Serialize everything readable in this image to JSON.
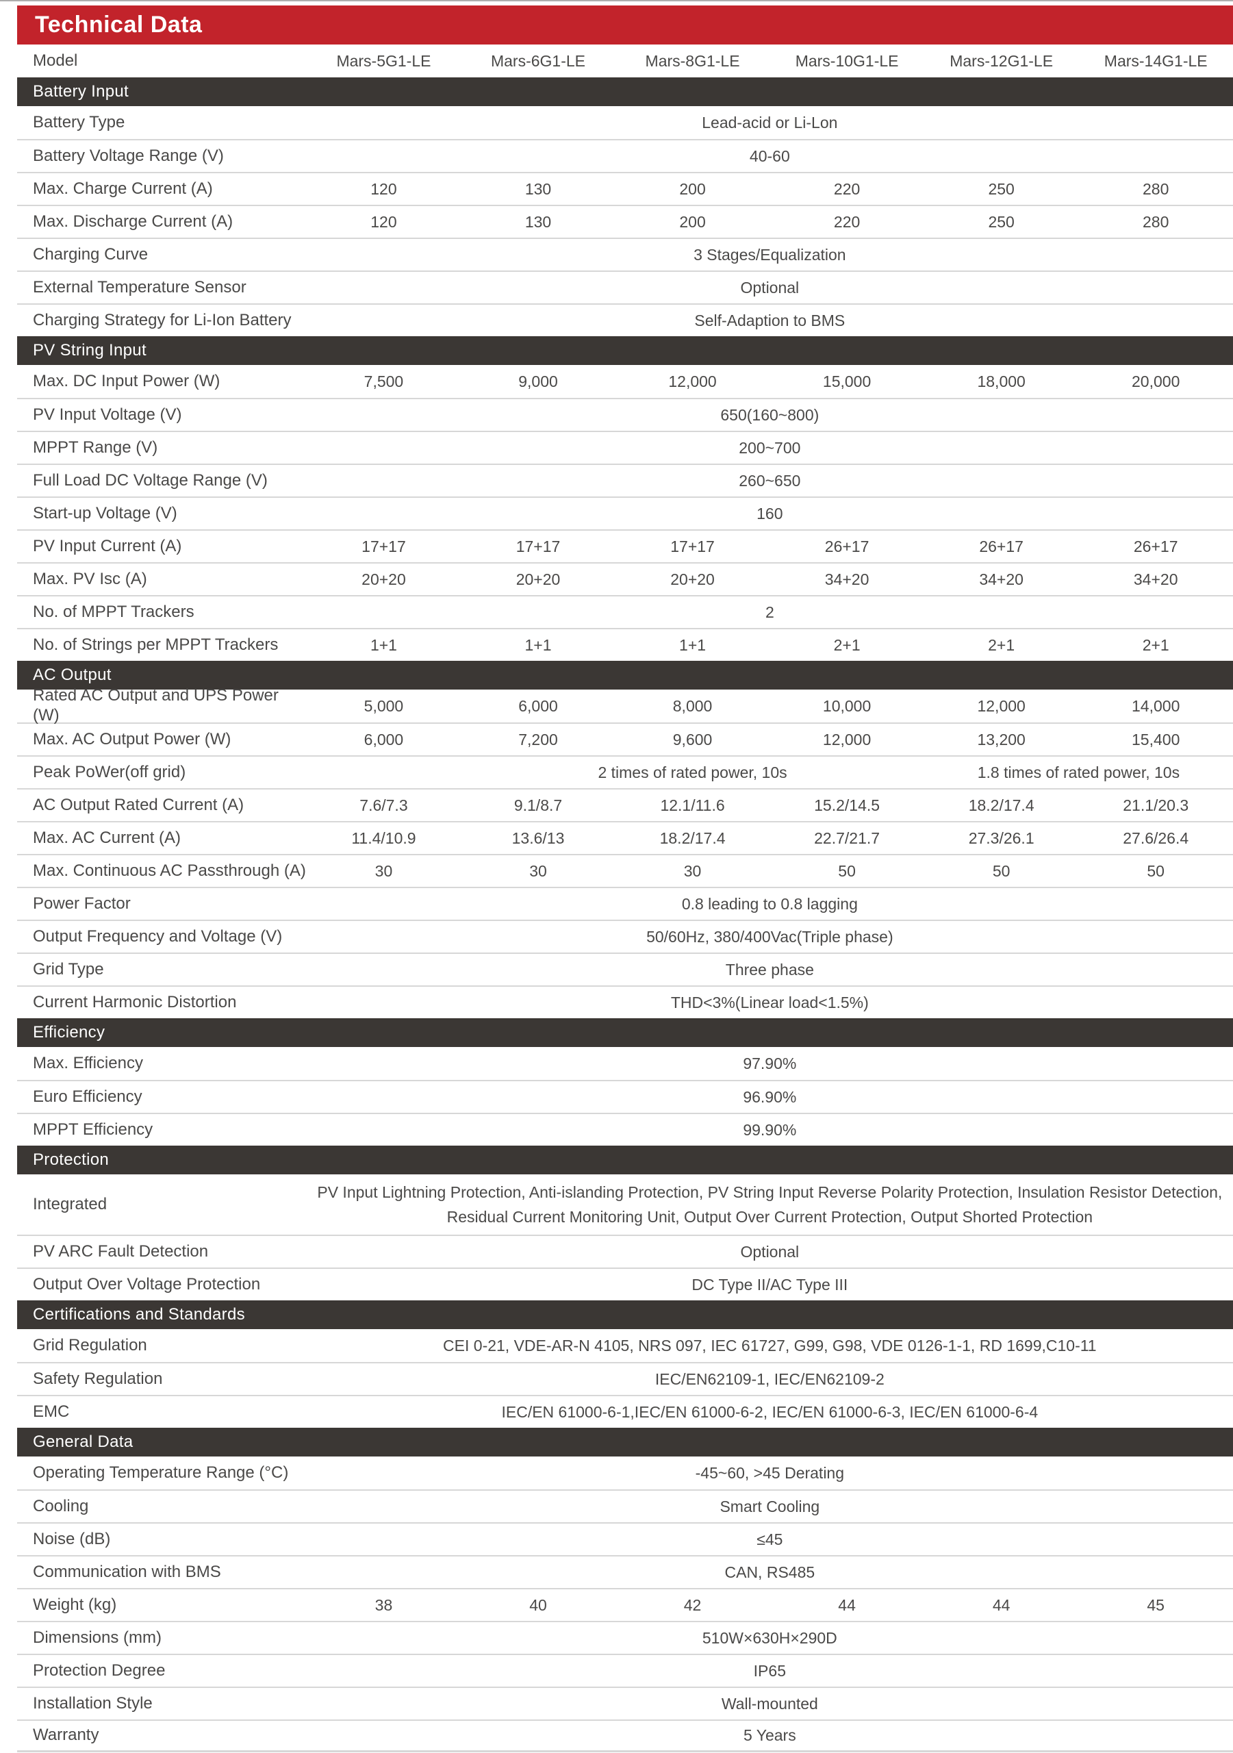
{
  "title": "Technical Data",
  "model_label": "Model",
  "columns": [
    "Mars-5G1-LE",
    "Mars-6G1-LE",
    "Mars-8G1-LE",
    "Mars-10G1-LE",
    "Mars-12G1-LE",
    "Mars-14G1-LE"
  ],
  "colors": {
    "banner_red": "#c2232b",
    "section_bar_dark": "#3b3734",
    "body_text": "#4a4948",
    "separator": "#d7d7d7"
  },
  "sections": [
    {
      "header": "Battery Input",
      "rows": [
        {
          "label": "Battery Type",
          "span": "Lead-acid or Li-Lon"
        },
        {
          "label": "Battery Voltage Range (V)",
          "span": "40-60"
        },
        {
          "label": "Max. Charge Current (A)",
          "values": [
            "120",
            "130",
            "200",
            "220",
            "250",
            "280"
          ]
        },
        {
          "label": "Max. Discharge Current (A)",
          "values": [
            "120",
            "130",
            "200",
            "220",
            "250",
            "280"
          ]
        },
        {
          "label": "Charging Curve",
          "span": "3 Stages/Equalization"
        },
        {
          "label": "External Temperature Sensor",
          "span": "Optional"
        },
        {
          "label": "Charging Strategy for Li-Ion Battery",
          "span": "Self-Adaption to BMS"
        }
      ]
    },
    {
      "header": "PV String Input",
      "rows": [
        {
          "label": "Max. DC Input Power (W)",
          "values": [
            "7,500",
            "9,000",
            "12,000",
            "15,000",
            "18,000",
            "20,000"
          ]
        },
        {
          "label": "PV Input Voltage (V)",
          "span": "650(160~800)"
        },
        {
          "label": "MPPT Range (V)",
          "span": "200~700"
        },
        {
          "label": "Full Load DC Voltage Range (V)",
          "span": "260~650"
        },
        {
          "label": "Start-up Voltage (V)",
          "span": "160"
        },
        {
          "label": "PV Input Current (A)",
          "values": [
            "17+17",
            "17+17",
            "17+17",
            "26+17",
            "26+17",
            "26+17"
          ]
        },
        {
          "label": "Max. PV Isc (A)",
          "values": [
            "20+20",
            "20+20",
            "20+20",
            "34+20",
            "34+20",
            "34+20"
          ]
        },
        {
          "label": "No. of MPPT Trackers",
          "span": "2"
        },
        {
          "label": "No. of Strings per MPPT Trackers",
          "values": [
            "1+1",
            "1+1",
            "1+1",
            "2+1",
            "2+1",
            "2+1"
          ]
        }
      ]
    },
    {
      "header": "AC Output",
      "rows": [
        {
          "label": "Rated AC Output and UPS Power (W)",
          "values": [
            "5,000",
            "6,000",
            "8,000",
            "10,000",
            "12,000",
            "14,000"
          ]
        },
        {
          "label": "Max. AC Output Power (W)",
          "values": [
            "6,000",
            "7,200",
            "9,600",
            "12,000",
            "13,200",
            "15,400"
          ]
        },
        {
          "label": "Peak PoWer(off grid)",
          "parts": [
            {
              "text": "",
              "cols": 1
            },
            {
              "text": "2 times of rated power, 10s",
              "cols": 3
            },
            {
              "text": "1.8 times of rated power, 10s",
              "cols": 2
            }
          ]
        },
        {
          "label": "AC Output Rated Current (A)",
          "values": [
            "7.6/7.3",
            "9.1/8.7",
            "12.1/11.6",
            "15.2/14.5",
            "18.2/17.4",
            "21.1/20.3"
          ]
        },
        {
          "label": "Max. AC Current (A)",
          "values": [
            "11.4/10.9",
            "13.6/13",
            "18.2/17.4",
            "22.7/21.7",
            "27.3/26.1",
            "27.6/26.4"
          ]
        },
        {
          "label": "Max. Continuous AC Passthrough (A)",
          "values": [
            "30",
            "30",
            "30",
            "50",
            "50",
            "50"
          ]
        },
        {
          "label": "Power Factor",
          "span": "0.8 leading to 0.8 lagging"
        },
        {
          "label": "Output Frequency and Voltage (V)",
          "span": "50/60Hz, 380/400Vac(Triple phase)"
        },
        {
          "label": "Grid Type",
          "span": "Three phase"
        },
        {
          "label": "Current Harmonic Distortion",
          "span": "THD<3%(Linear load<1.5%)"
        }
      ]
    },
    {
      "header": "Efficiency",
      "rows": [
        {
          "label": "Max. Efficiency",
          "span": "97.90%"
        },
        {
          "label": "Euro Efficiency",
          "span": "96.90%"
        },
        {
          "label": "MPPT Efficiency",
          "span": "99.90%"
        }
      ]
    },
    {
      "header": "Protection",
      "rows": [
        {
          "label": "Integrated",
          "span": "PV Input Lightning Protection, Anti-islanding Protection, PV String Input Reverse Polarity Protection, Insulation Resistor Detection, Residual Current Monitoring Unit, Output Over Current Protection, Output Shorted Protection",
          "tall": true
        },
        {
          "label": "PV ARC Fault Detection",
          "span": "Optional"
        },
        {
          "label": "Output Over Voltage Protection",
          "span": "DC Type II/AC Type III"
        }
      ]
    },
    {
      "header": "Certifications and Standards",
      "rows": [
        {
          "label": "Grid Regulation",
          "span": "CEI 0-21, VDE-AR-N 4105, NRS 097, IEC 61727, G99, G98, VDE 0126-1-1, RD 1699,C10-11"
        },
        {
          "label": "Safety Regulation",
          "span": "IEC/EN62109-1, IEC/EN62109-2"
        },
        {
          "label": "EMC",
          "span": "IEC/EN 61000-6-1,IEC/EN 61000-6-2, IEC/EN 61000-6-3, IEC/EN 61000-6-4"
        }
      ]
    },
    {
      "header": "General Data",
      "rows": [
        {
          "label": "Operating Temperature Range (°C)",
          "span": "-45~60, >45 Derating"
        },
        {
          "label": "Cooling",
          "span": "Smart Cooling"
        },
        {
          "label": "Noise (dB)",
          "span": "≤45"
        },
        {
          "label": "Communication with BMS",
          "span": "CAN, RS485"
        },
        {
          "label": "Weight (kg)",
          "values": [
            "38",
            "40",
            "42",
            "44",
            "44",
            "45"
          ]
        },
        {
          "label": "Dimensions (mm)",
          "span": "510W×630H×290D"
        },
        {
          "label": "Protection Degree",
          "span": "IP65"
        },
        {
          "label": "Installation Style",
          "span": "Wall-mounted"
        },
        {
          "label": "Warranty",
          "span": "5 Years"
        }
      ]
    }
  ]
}
